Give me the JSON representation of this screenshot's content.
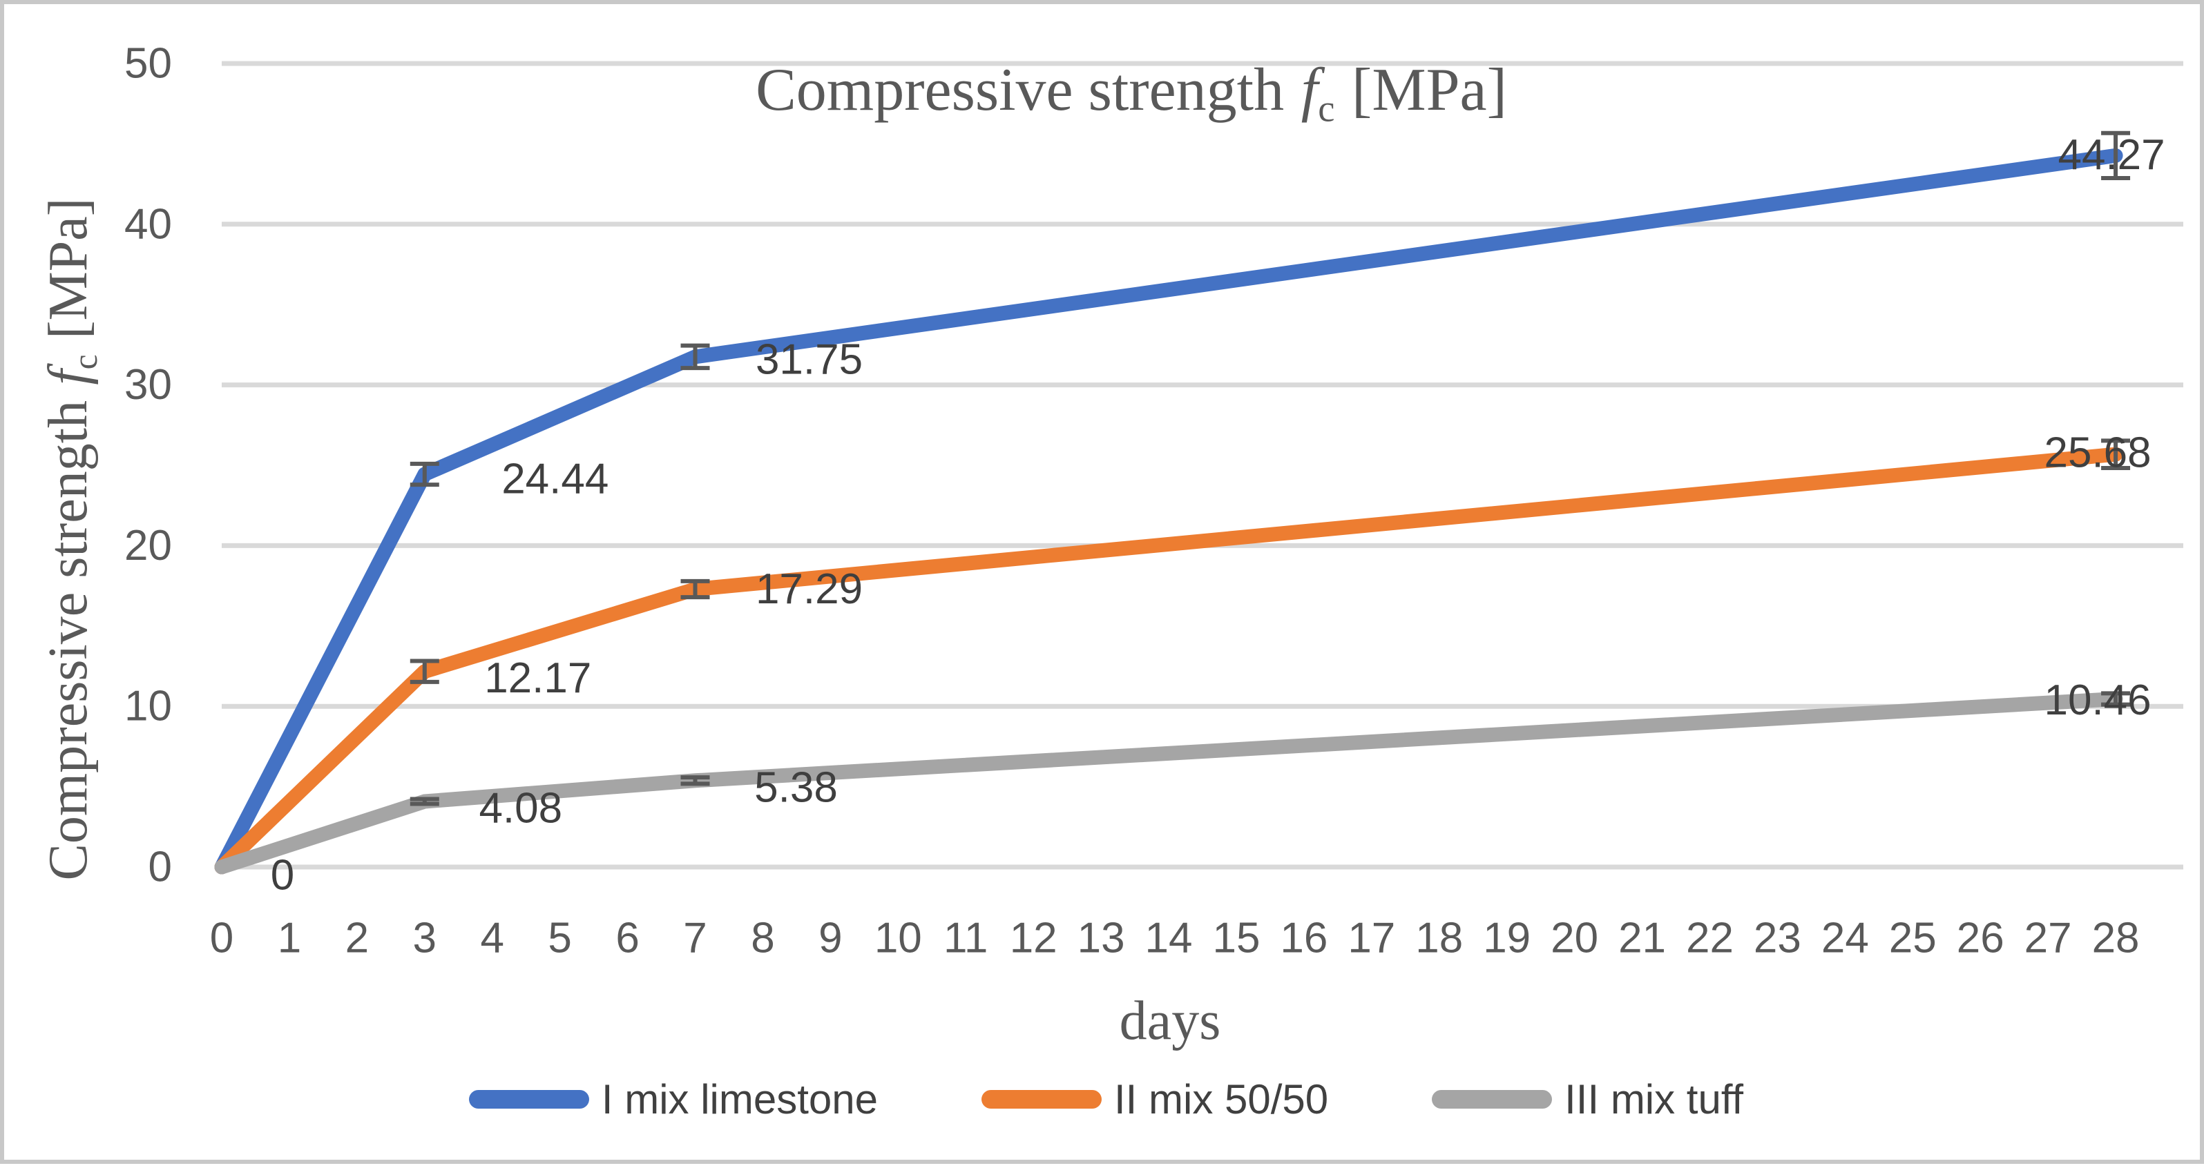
{
  "figure": {
    "title_prefix": "Compressive strength",
    "title_math_italic": "f",
    "title_math_sub": "c",
    "title_suffix": "[MPa]"
  },
  "axes": {
    "x": {
      "title": "days",
      "ticks": [
        "0",
        "1",
        "2",
        "3",
        "4",
        "5",
        "6",
        "7",
        "8",
        "9",
        "10",
        "11",
        "12",
        "13",
        "14",
        "15",
        "16",
        "17",
        "18",
        "19",
        "20",
        "21",
        "22",
        "23",
        "24",
        "25",
        "26",
        "27",
        "28"
      ]
    },
    "y": {
      "title_prefix": "Compressive strength",
      "title_math_italic": "f",
      "title_math_sub": "c",
      "title_suffix": "[MPa]",
      "ticks": [
        "0",
        "10",
        "20",
        "30",
        "40",
        "50"
      ]
    }
  },
  "chart_data": {
    "type": "line",
    "title": "Compressive strength fc [MPa]",
    "xlabel": "days",
    "ylabel": "Compressive strength fc [MPa]",
    "x": [
      0,
      3,
      7,
      28
    ],
    "xlim": [
      0,
      29
    ],
    "ylim": [
      0,
      50
    ],
    "grid": "horizontal",
    "legend_position": "bottom",
    "series": [
      {
        "name": "I mix limestone",
        "color": "#4472C4",
        "values": [
          0,
          24.44,
          31.75,
          44.27
        ],
        "labels": [
          "0",
          "24.44",
          "31.75",
          "44.27"
        ],
        "error": [
          0,
          0.65,
          0.7,
          1.4
        ]
      },
      {
        "name": "II mix 50/50",
        "color": "#ED7D31",
        "values": [
          0,
          12.17,
          17.29,
          25.68
        ],
        "labels": [
          null,
          "12.17",
          "17.29",
          "25.68"
        ],
        "error": [
          0,
          0.65,
          0.5,
          0.85
        ]
      },
      {
        "name": "III mix tuff",
        "color": "#A5A5A5",
        "values": [
          0,
          4.08,
          5.38,
          10.46
        ],
        "labels": [
          null,
          "4.08",
          "5.38",
          "10.46"
        ],
        "error": [
          0,
          0.15,
          0.2,
          0.35
        ]
      }
    ]
  },
  "colors": {
    "gridline": "#D9D9D9",
    "tick_text": "#595959",
    "data_label_text": "#3F3F3F",
    "error_bar": "#595959",
    "border": "#C8C8C8"
  }
}
